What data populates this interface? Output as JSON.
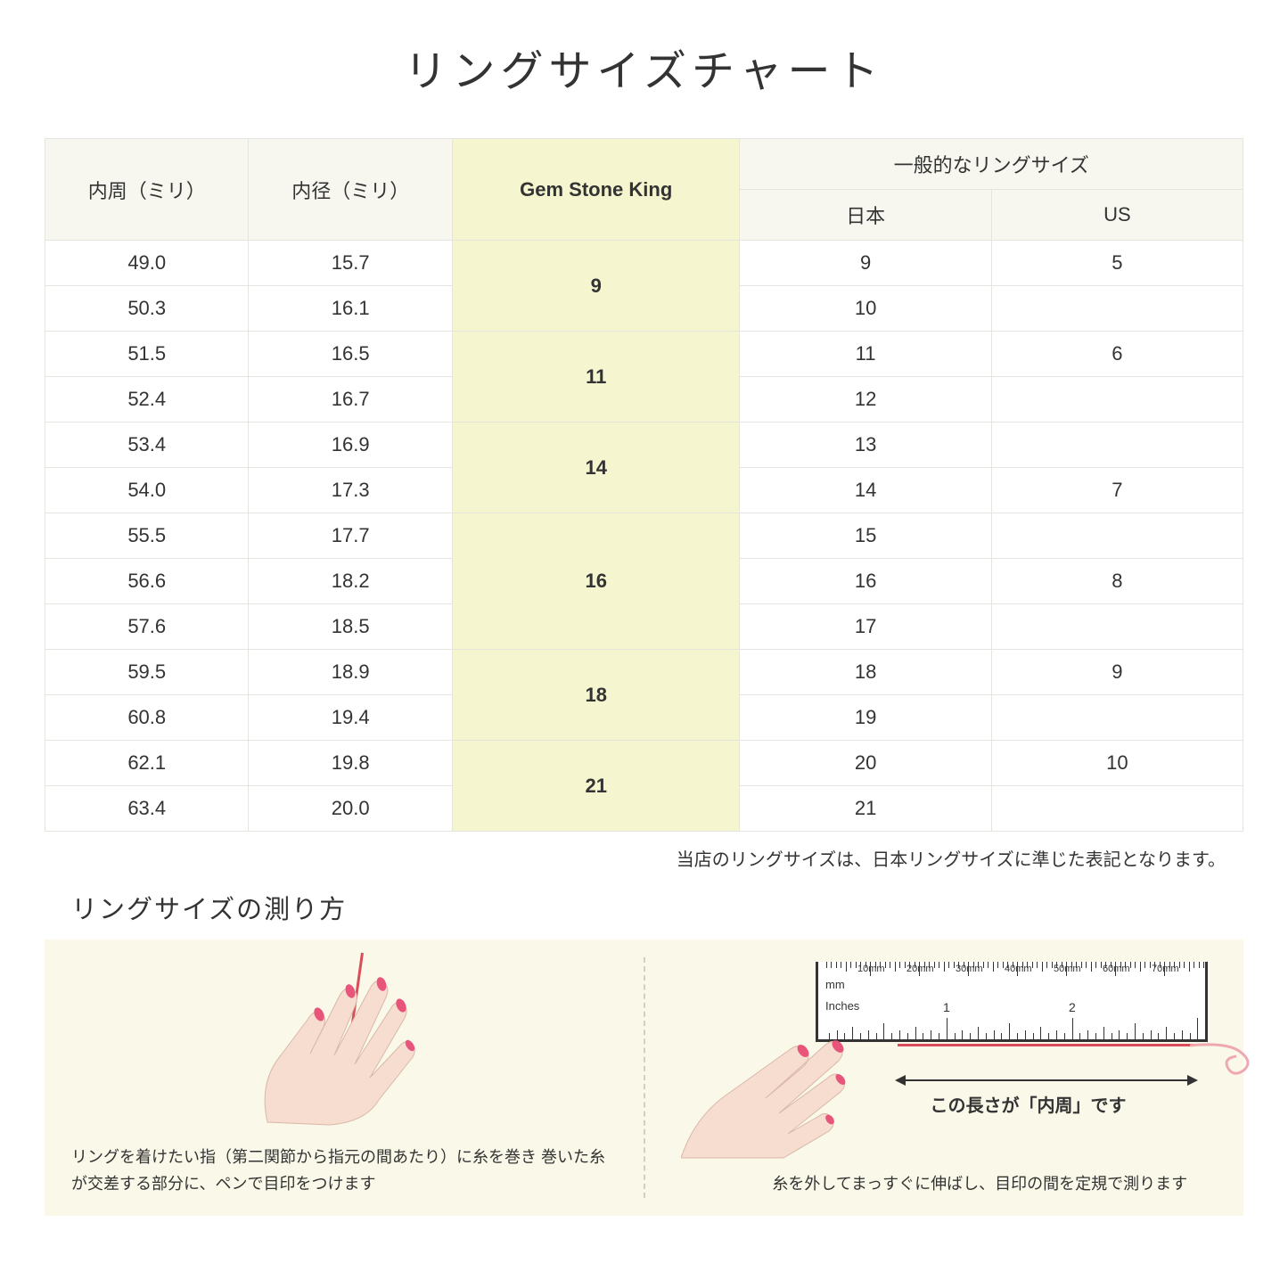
{
  "title": "リングサイズチャート",
  "table": {
    "headers": {
      "col1": "内周（ミリ）",
      "col2": "内径（ミリ）",
      "col3": "Gem Stone King",
      "col4_group": "一般的なリングサイズ",
      "col4a": "日本",
      "col4b": "US"
    },
    "rows": [
      {
        "c1": "49.0",
        "c2": "15.7",
        "gsk": "9",
        "jp": "9",
        "us": "5"
      },
      {
        "c1": "50.3",
        "c2": "16.1",
        "gsk": "",
        "jp": "10",
        "us": ""
      },
      {
        "c1": "51.5",
        "c2": "16.5",
        "gsk": "11",
        "jp": "11",
        "us": "6"
      },
      {
        "c1": "52.4",
        "c2": "16.7",
        "gsk": "",
        "jp": "12",
        "us": ""
      },
      {
        "c1": "53.4",
        "c2": "16.9",
        "gsk": "14",
        "jp": "13",
        "us": ""
      },
      {
        "c1": "54.0",
        "c2": "17.3",
        "gsk": "",
        "jp": "14",
        "us": "7"
      },
      {
        "c1": "55.5",
        "c2": "17.7",
        "gsk": "16",
        "jp": "15",
        "us": ""
      },
      {
        "c1": "56.6",
        "c2": "18.2",
        "gsk": "",
        "jp": "16",
        "us": "8"
      },
      {
        "c1": "57.6",
        "c2": "18.5",
        "gsk": "",
        "jp": "17",
        "us": ""
      },
      {
        "c1": "59.5",
        "c2": "18.9",
        "gsk": "18",
        "jp": "18",
        "us": "9"
      },
      {
        "c1": "60.8",
        "c2": "19.4",
        "gsk": "",
        "jp": "19",
        "us": ""
      },
      {
        "c1": "62.1",
        "c2": "19.8",
        "gsk": "21",
        "jp": "20",
        "us": "10"
      },
      {
        "c1": "63.4",
        "c2": "20.0",
        "gsk": "",
        "jp": "21",
        "us": ""
      }
    ],
    "gsk_spans": [
      2,
      2,
      2,
      3,
      2,
      2
    ],
    "column_widths": [
      "17%",
      "17%",
      "24%",
      "21%",
      "21%"
    ],
    "header_bg": "#f7f7f0",
    "highlight_bg": "#f5f5d0",
    "border_color": "#e5e5e0"
  },
  "note": "当店のリングサイズは、日本リングサイズに準じた表記となります。",
  "howto": {
    "title": "リングサイズの測り方",
    "panel1_text": "リングを着けたい指（第二関節から指元の間あたり）に糸を巻き\n巻いた糸が交差する部分に、ペンで目印をつけます",
    "panel2_text": "糸を外してまっすぐに伸ばし、目印の間を定規で測ります",
    "measure_label": "この長さが「内周」です",
    "ruler_mm_label": "mm",
    "ruler_in_label": "Inches",
    "ruler_mm_marks": [
      "10mm",
      "20mm",
      "30mm",
      "40mm",
      "50mm",
      "60mm",
      "70mm"
    ],
    "ruler_in_marks": [
      "1",
      "2"
    ],
    "background_color": "#faf8e8",
    "thread_color": "#d94d5a",
    "hand_skin": "#f7dcd0",
    "nail_color": "#e8557a"
  }
}
